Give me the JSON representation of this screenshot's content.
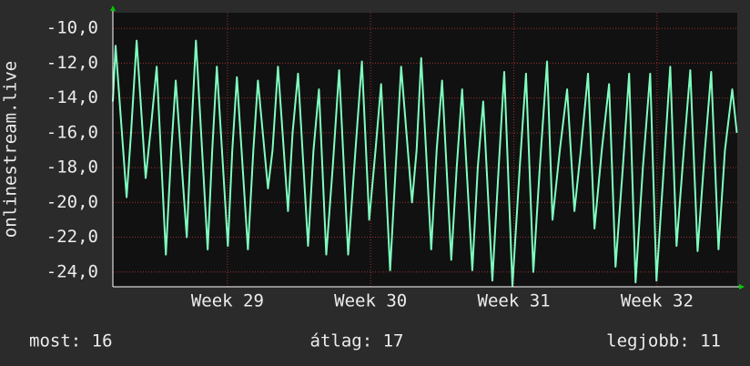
{
  "chart_data": {
    "type": "line",
    "y_label": "onlinestream.live",
    "xlim": [
      28.2,
      32.56
    ],
    "ylim": [
      -24.85,
      -9.1
    ],
    "xticks": [
      {
        "value": 29,
        "label": "Week 29"
      },
      {
        "value": 30,
        "label": "Week 30"
      },
      {
        "value": 31,
        "label": "Week 31"
      },
      {
        "value": 32,
        "label": "Week 32"
      }
    ],
    "yticks": [
      {
        "value": -10,
        "label": "-10,0"
      },
      {
        "value": -12,
        "label": "-12,0"
      },
      {
        "value": -14,
        "label": "-14,0"
      },
      {
        "value": -16,
        "label": "-16,0"
      },
      {
        "value": -18,
        "label": "-18,0"
      },
      {
        "value": -20,
        "label": "-20,0"
      },
      {
        "value": -22,
        "label": "-22,0"
      },
      {
        "value": -24,
        "label": "-24,0"
      }
    ],
    "grid": true,
    "annotations": [
      "most: 16",
      "átlag: 17",
      "legjobb: 11"
    ],
    "series": [
      {
        "color": "#7fffbf",
        "x": [
          28.2,
          28.219,
          28.296,
          28.327,
          28.366,
          28.429,
          28.468,
          28.506,
          28.57,
          28.608,
          28.639,
          28.716,
          28.748,
          28.78,
          28.862,
          28.894,
          28.926,
          29.003,
          29.034,
          29.066,
          29.143,
          29.181,
          29.213,
          29.283,
          29.315,
          29.353,
          29.423,
          29.455,
          29.493,
          29.563,
          29.601,
          29.639,
          29.69,
          29.735,
          29.78,
          29.843,
          29.894,
          29.939,
          29.99,
          30.034,
          30.073,
          30.136,
          30.175,
          30.213,
          30.289,
          30.321,
          30.353,
          30.423,
          30.461,
          30.499,
          30.563,
          30.601,
          30.639,
          30.71,
          30.748,
          30.786,
          30.85,
          30.894,
          30.933,
          30.99,
          31.041,
          31.085,
          31.136,
          31.181,
          31.232,
          31.27,
          31.321,
          31.372,
          31.423,
          31.468,
          31.518,
          31.563,
          31.614,
          31.665,
          31.71,
          31.761,
          31.805,
          31.85,
          31.901,
          31.952,
          31.996,
          32.047,
          32.092,
          32.136,
          32.187,
          32.232,
          32.283,
          32.334,
          32.378,
          32.429,
          32.474,
          32.525,
          32.557
        ],
        "values": [
          -14.2,
          -11,
          -19.7,
          -16,
          -10.7,
          -18.6,
          -15.5,
          -12.2,
          -23,
          -17,
          -13,
          -22,
          -16,
          -10.7,
          -22.7,
          -17,
          -12.2,
          -22.5,
          -17,
          -12.8,
          -22.7,
          -17,
          -13,
          -19.2,
          -17,
          -12.2,
          -20.5,
          -16,
          -12.6,
          -22.5,
          -17,
          -13.5,
          -23,
          -18,
          -12.4,
          -23,
          -17,
          -11.9,
          -21,
          -17,
          -13.2,
          -23.9,
          -18,
          -12.2,
          -20,
          -17,
          -11.7,
          -22.7,
          -17,
          -13,
          -23.3,
          -18,
          -13.5,
          -23.9,
          -18,
          -14.2,
          -24.5,
          -18,
          -12.5,
          -24.8,
          -18,
          -12.6,
          -24,
          -18,
          -11.9,
          -21,
          -17,
          -13.5,
          -20.5,
          -17,
          -12.6,
          -21.5,
          -17,
          -13.2,
          -23.7,
          -18,
          -12.6,
          -24.6,
          -18,
          -12.6,
          -24.5,
          -18,
          -12.2,
          -22.5,
          -17,
          -12.4,
          -22.8,
          -17,
          -12.5,
          -22.7,
          -17,
          -13.5,
          -16
        ]
      }
    ]
  }
}
